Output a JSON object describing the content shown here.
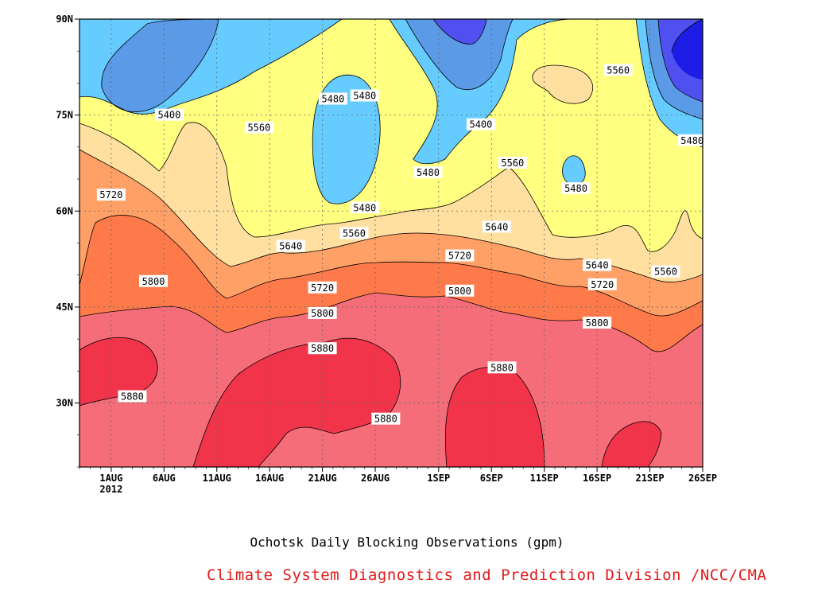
{
  "chart_data": {
    "type": "heatmap",
    "title": "Ochotsk Daily Blocking Observations (gpm)",
    "credit": "Climate System Diagnostics and Prediction Division /NCC/CMA",
    "x_axis": {
      "ticks": [
        "1AUG",
        "6AUG",
        "11AUG",
        "16AUG",
        "21AUG",
        "26AUG",
        "1SEP",
        "6SEP",
        "11SEP",
        "16SEP",
        "21SEP",
        "26SEP"
      ],
      "tick_days": [
        3,
        8,
        13,
        18,
        23,
        28,
        34,
        39,
        44,
        49,
        54,
        59
      ],
      "year_label": "2012",
      "range_days": [
        0,
        59
      ],
      "unit": "days from 29JUL2012"
    },
    "y_axis": {
      "ticks": [
        "30N",
        "45N",
        "60N",
        "75N",
        "90N"
      ],
      "tick_values": [
        30,
        45,
        60,
        75,
        90
      ],
      "range": [
        20,
        90
      ]
    },
    "levels": [
      5400,
      5480,
      5560,
      5640,
      5720,
      5800,
      5880
    ],
    "colors": {
      "lt5320": "#1c1ce6",
      "5320_5400": "#5050f0",
      "5400_5480": "#5a9ae6",
      "5480_5560": "#66ccff",
      "5560_5640": "#ffff80",
      "5640_5720": "#ffe0a0",
      "5720_5800": "#ffa066",
      "5800_5880": "#ff7a4a",
      "5880_5960": "#f56d78",
      "gt5960": "#f2344a"
    },
    "contour_labels": [
      {
        "text": "5400",
        "day": 8.5,
        "lat": 75
      },
      {
        "text": "5480",
        "day": 27,
        "lat": 78
      },
      {
        "text": "5400",
        "day": 38,
        "lat": 73.5
      },
      {
        "text": "5560",
        "day": 51,
        "lat": 82
      },
      {
        "text": "5560",
        "day": 17,
        "lat": 73
      },
      {
        "text": "5480",
        "day": 24,
        "lat": 77.5
      },
      {
        "text": "5480",
        "day": 33,
        "lat": 66
      },
      {
        "text": "5560",
        "day": 41,
        "lat": 67.5
      },
      {
        "text": "5480",
        "day": 47,
        "lat": 63.5
      },
      {
        "text": "5480",
        "day": 58,
        "lat": 71
      },
      {
        "text": "5720",
        "day": 3,
        "lat": 62.5
      },
      {
        "text": "5480",
        "day": 27,
        "lat": 60.5
      },
      {
        "text": "5560",
        "day": 26,
        "lat": 56.5
      },
      {
        "text": "5640",
        "day": 20,
        "lat": 54.5
      },
      {
        "text": "5640",
        "day": 39.5,
        "lat": 57.5
      },
      {
        "text": "5720",
        "day": 36,
        "lat": 53
      },
      {
        "text": "5640",
        "day": 49,
        "lat": 51.5
      },
      {
        "text": "5560",
        "day": 55.5,
        "lat": 50.5
      },
      {
        "text": "5800",
        "day": 7,
        "lat": 49
      },
      {
        "text": "5720",
        "day": 23,
        "lat": 48
      },
      {
        "text": "5800",
        "day": 36,
        "lat": 47.5
      },
      {
        "text": "5720",
        "day": 49.5,
        "lat": 48.5
      },
      {
        "text": "5800",
        "day": 23,
        "lat": 44
      },
      {
        "text": "5800",
        "day": 49,
        "lat": 42.5
      },
      {
        "text": "5880",
        "day": 23,
        "lat": 38.5
      },
      {
        "text": "5880",
        "day": 40,
        "lat": 35.5
      },
      {
        "text": "5880",
        "day": 5,
        "lat": 31
      },
      {
        "text": "5880",
        "day": 29,
        "lat": 27.5
      }
    ]
  }
}
